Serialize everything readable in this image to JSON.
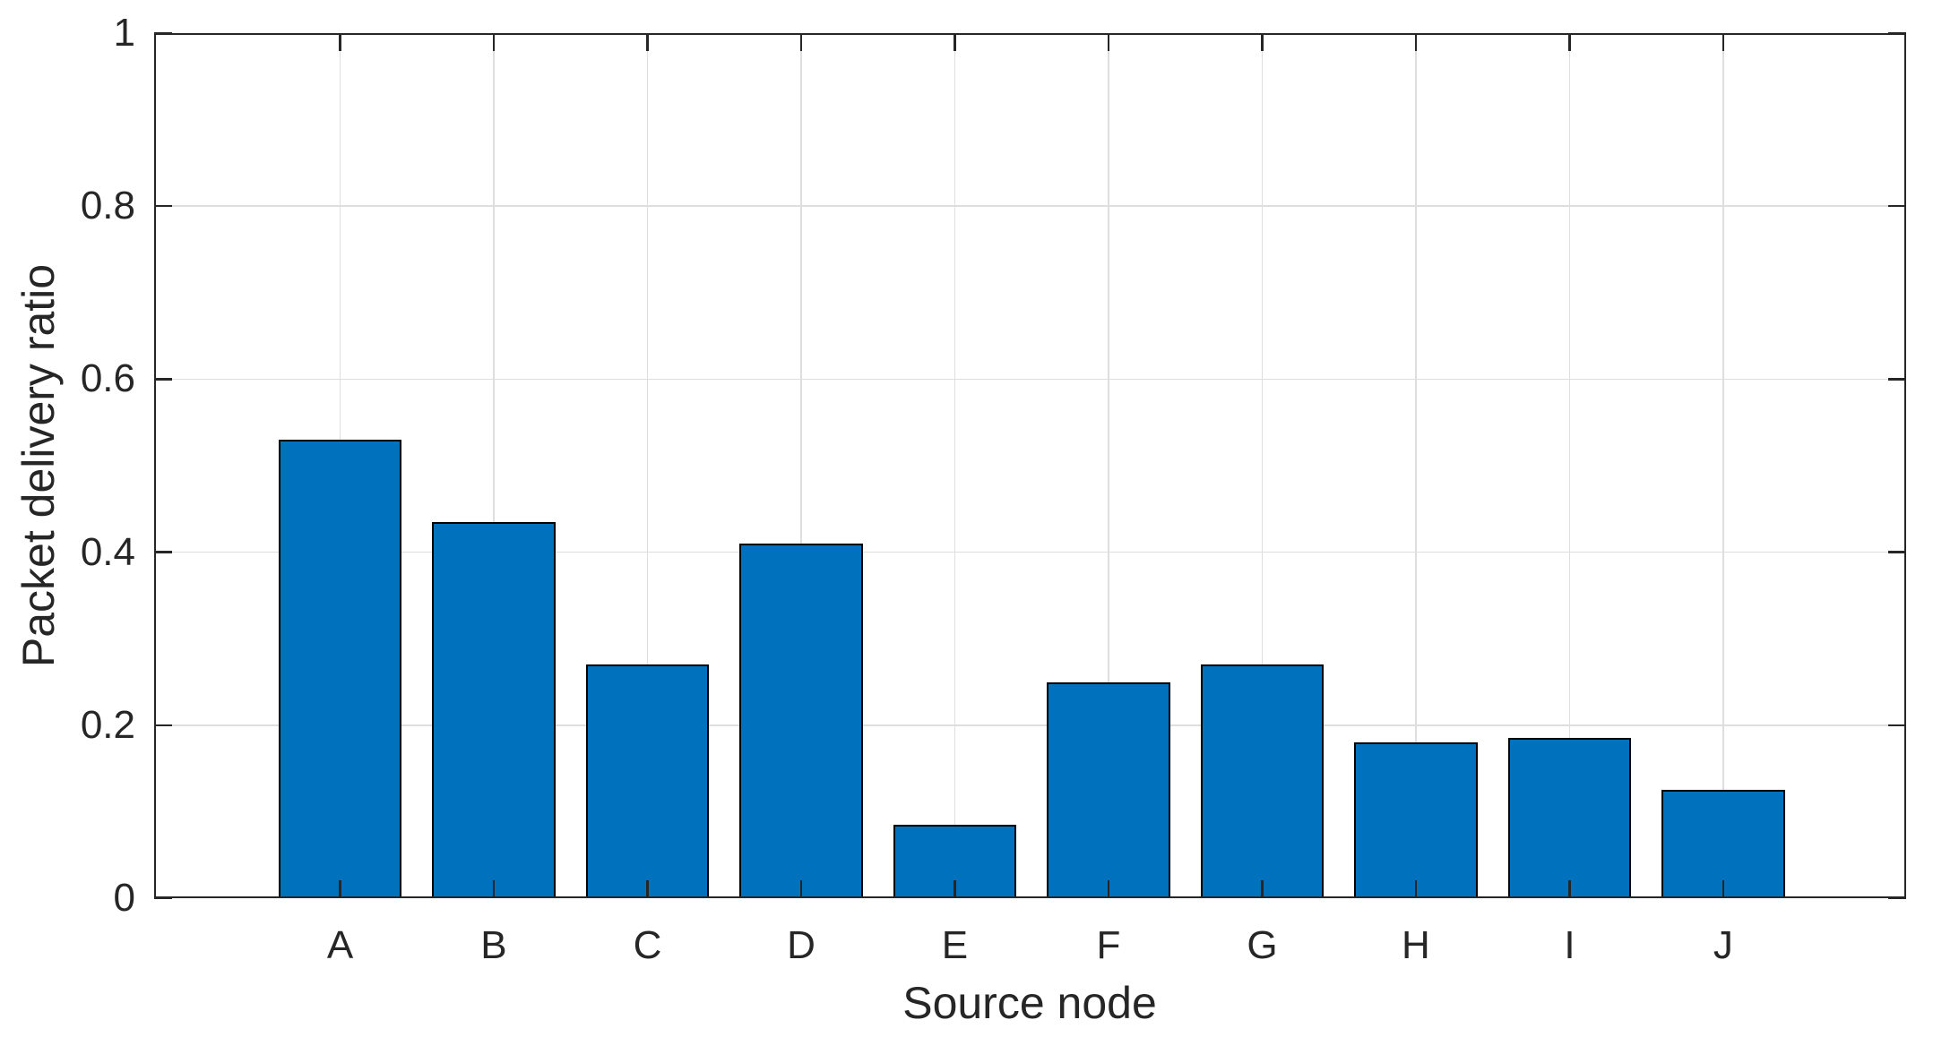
{
  "figure": {
    "background": "#ffffff"
  },
  "chart_data": {
    "type": "bar",
    "categories": [
      "A",
      "B",
      "C",
      "D",
      "E",
      "F",
      "G",
      "H",
      "I",
      "J"
    ],
    "values": [
      0.53,
      0.435,
      0.27,
      0.41,
      0.085,
      0.25,
      0.27,
      0.18,
      0.185,
      0.125
    ],
    "title": "",
    "xlabel": "Source node",
    "ylabel": "Packet delivery ratio",
    "ylim": [
      0,
      1
    ],
    "yticks": [
      0,
      0.2,
      0.4,
      0.6,
      0.8,
      1
    ],
    "ytick_labels": [
      "0",
      "0.2",
      "0.4",
      "0.6",
      "0.8",
      "1"
    ],
    "grid": true,
    "legend_position": "none",
    "bar_width_ratio": 0.8,
    "bar_color": "#0072BD",
    "bar_edge_color": "#000000",
    "axis_color": "#262626",
    "grid_color": "#dedede",
    "text_color": "#262626"
  }
}
